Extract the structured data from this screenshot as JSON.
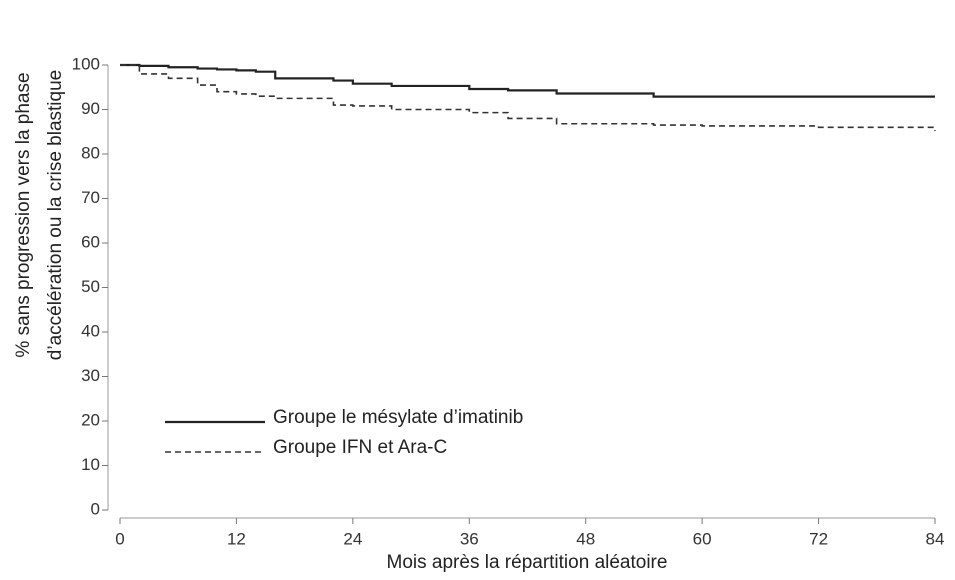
{
  "chart_data": {
    "type": "step",
    "xlabel": "Mois après la répartition aléatoire",
    "ylabel": [
      "% sans progression vers la phase",
      "d’accélération ou la crise blastique"
    ],
    "x": [
      0,
      2,
      5,
      8,
      10,
      12,
      14,
      16,
      22,
      24,
      28,
      36,
      40,
      45,
      55,
      60,
      72,
      84
    ],
    "series": [
      {
        "name": "Groupe le mésylate d’imatinib",
        "color": "#222222",
        "dash": "solid",
        "values": [
          100,
          99.8,
          99.5,
          99.2,
          99,
          98.8,
          98.5,
          97,
          96.5,
          95.8,
          95.3,
          94.6,
          94.3,
          93.6,
          92.9,
          92.9,
          92.9,
          92.9
        ]
      },
      {
        "name": "Groupe IFN et Ara-C",
        "color": "#333333",
        "dash": "dashed",
        "values": [
          100,
          98,
          97,
          95.5,
          94,
          93.5,
          93,
          92.5,
          91,
          90.8,
          90,
          89.3,
          88,
          86.8,
          86.5,
          86.3,
          86,
          85.2
        ]
      }
    ],
    "xlim": [
      0,
      84
    ],
    "xticks": [
      0,
      12,
      24,
      36,
      48,
      60,
      72,
      84
    ],
    "ylim": [
      0,
      100
    ],
    "yticks": [
      0,
      10,
      20,
      30,
      40,
      50,
      60,
      70,
      80,
      90,
      100
    ],
    "grid": false,
    "legend": "lower left"
  }
}
